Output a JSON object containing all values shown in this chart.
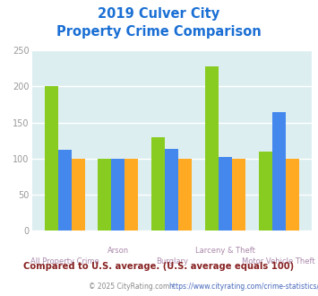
{
  "title_line1": "2019 Culver City",
  "title_line2": "Property Crime Comparison",
  "title_color": "#1a6fd4",
  "categories": [
    "All Property Crime",
    "Arson",
    "Burglary",
    "Larceny & Theft",
    "Motor Vehicle Theft"
  ],
  "series": {
    "Culver City": [
      200,
      100,
      130,
      228,
      110
    ],
    "California": [
      112,
      100,
      114,
      102,
      165
    ],
    "National": [
      100,
      100,
      100,
      100,
      100
    ]
  },
  "colors": {
    "Culver City": "#88cc22",
    "California": "#4488ee",
    "National": "#ffaa22"
  },
  "ylim": [
    0,
    250
  ],
  "yticks": [
    0,
    50,
    100,
    150,
    200,
    250
  ],
  "background_color": "#ddeef0",
  "grid_color": "#ffffff",
  "footnote": "Compared to U.S. average. (U.S. average equals 100)",
  "footnote_color": "#882222",
  "copyright_text": "© 2025 CityRating.com - ",
  "copyright_link": "https://www.cityrating.com/crime-statistics/",
  "copyright_color": "#888888",
  "copyright_link_color": "#4466bb",
  "xlabel_color": "#aa88aa",
  "tick_color": "#999999",
  "bar_width": 0.25,
  "legend_label_color": "#333333"
}
